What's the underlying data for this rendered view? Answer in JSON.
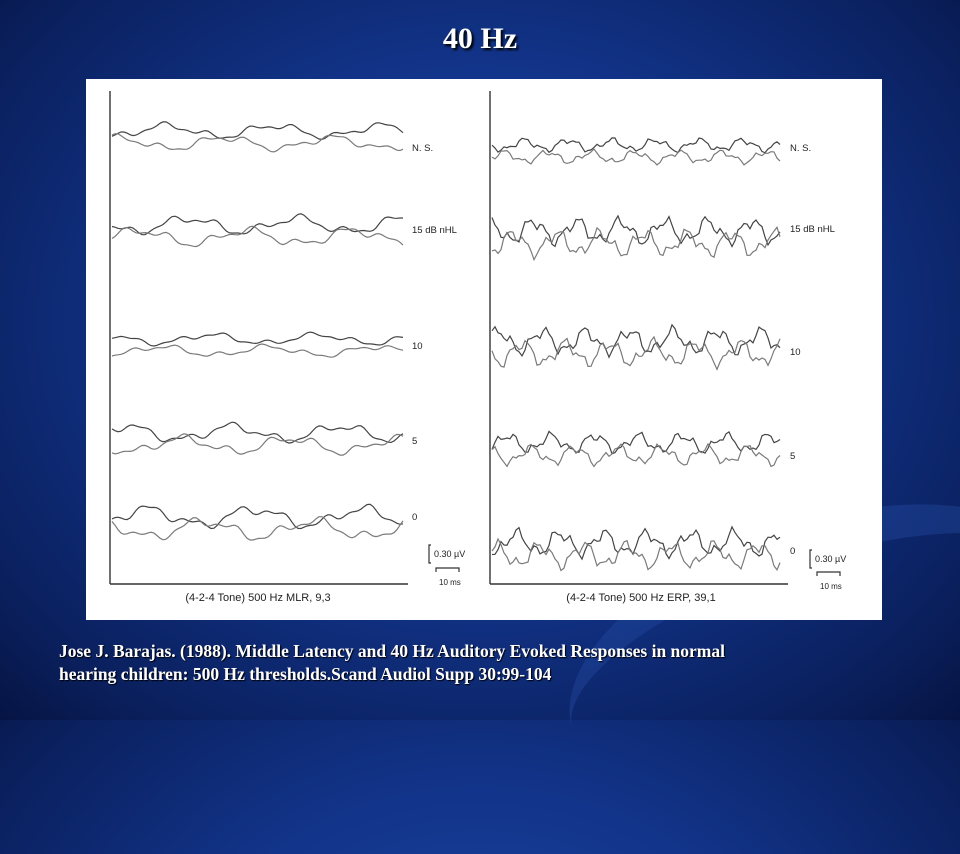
{
  "slide": {
    "title": "40 Hz"
  },
  "caption": {
    "line1": "Jose J. Barajas. (1988).  Middle Latency and 40 Hz Auditory Evoked Responses in normal",
    "line2": "hearing children: 500 Hz thresholds.Scand Audiol Supp 30:99-104"
  },
  "chart_data": [
    {
      "type": "line",
      "title": "(4-2-4  Tone) 500 Hz  MLR,  9,3",
      "trace_labels": [
        "N. S.",
        "15 dB  nHL",
        "10",
        "5",
        "0"
      ],
      "scale_bar_amplitude": "0.30 µV",
      "scale_bar_time": "10 ms"
    },
    {
      "type": "line",
      "title": "(4-2-4  Tone) 500 Hz  ERP,  39,1",
      "trace_labels": [
        "N. S.",
        "15 dB  nHL",
        "10",
        "5",
        "0"
      ],
      "scale_bar_amplitude": "0.30 µV",
      "scale_bar_time": "10 ms"
    }
  ]
}
